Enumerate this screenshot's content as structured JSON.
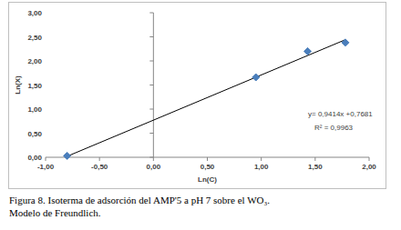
{
  "chart_data": {
    "type": "scatter",
    "x_label": "Ln(C)",
    "y_label": "Ln(X)",
    "annotations": [
      "y= 0,9414x +0,7681",
      "R² = 0,9963"
    ],
    "caption": [
      "Figura 8. Isoterma de adsorción del AMP'5 a pH 7 sobre el WO₃.",
      "Modelo de Freundlich."
    ],
    "series": [
      {
        "type": "scatter",
        "marker": "diamond",
        "color": "#4a7ebb",
        "x": [
          -0.8,
          0.95,
          1.43,
          1.78
        ],
        "values": [
          0.03,
          1.66,
          2.2,
          2.38
        ]
      },
      {
        "type": "line",
        "line_style": "solid",
        "color": "#000000",
        "x": [
          -0.8,
          1.78
        ],
        "values": [
          0.02,
          2.44
        ]
      }
    ],
    "xlim": [
      -1,
      2
    ],
    "ylim": [
      0,
      3
    ],
    "xticks": [
      {
        "value": -1,
        "label": "-1,00"
      },
      {
        "value": -0.5,
        "label": "-0,50"
      },
      {
        "value": 0,
        "label": "0,00"
      },
      {
        "value": 0.5,
        "label": "0,50"
      },
      {
        "value": 1,
        "label": "1,00"
      },
      {
        "value": 1.5,
        "label": "1,50"
      },
      {
        "value": 2,
        "label": "2,00"
      }
    ],
    "yticks": [
      {
        "value": 0,
        "label": "0,00"
      },
      {
        "value": 0.5,
        "label": "0,50"
      },
      {
        "value": 1,
        "label": "1,00"
      },
      {
        "value": 1.5,
        "label": "1,50"
      },
      {
        "value": 2,
        "label": "2,00"
      },
      {
        "value": 2.5,
        "label": "2,50"
      },
      {
        "value": 3,
        "label": "3,00"
      }
    ],
    "grid": false
  }
}
